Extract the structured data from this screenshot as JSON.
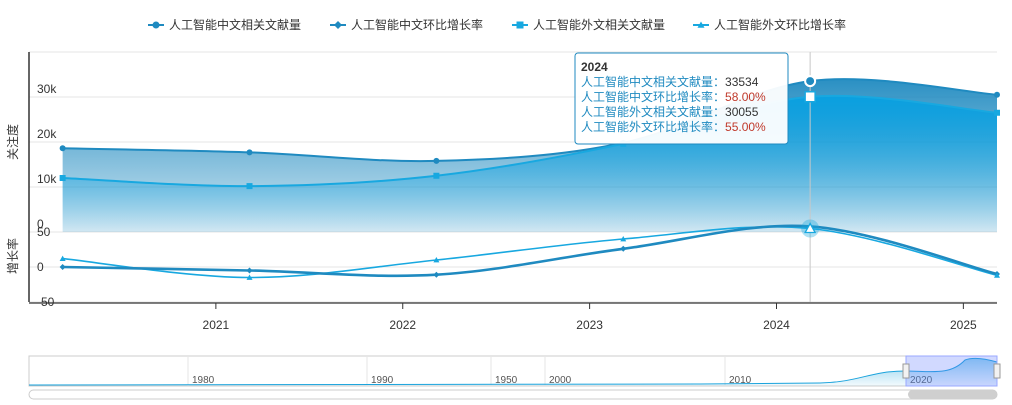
{
  "legend": [
    {
      "label": "人工智能中文相关文献量",
      "color": "#1f8ac0",
      "marker": "circle"
    },
    {
      "label": "人工智能中文环比增长率",
      "color": "#1f8ac0",
      "marker": "diamond"
    },
    {
      "label": "人工智能外文相关文献量",
      "color": "#18a8e0",
      "marker": "square"
    },
    {
      "label": "人工智能外文环比增长率",
      "color": "#18a8e0",
      "marker": "triangle"
    }
  ],
  "tooltip": {
    "title": "2024",
    "rows": [
      {
        "label": "人工智能中文相关文献量：",
        "value": "33534",
        "value_color": "#333333"
      },
      {
        "label": "人工智能中文环比增长率：",
        "value": "58.00%",
        "value_color": "#c0392b"
      },
      {
        "label": "人工智能外文相关文献量：",
        "value": "30055",
        "value_color": "#333333"
      },
      {
        "label": "人工智能外文环比增长率：",
        "value": "55.00%",
        "value_color": "#c0392b"
      }
    ]
  },
  "chart_data": {
    "type": "line",
    "x": [
      2020.18,
      2021.18,
      2022.18,
      2023.18,
      2024.18,
      2025.18
    ],
    "x_ticks": [
      "2021",
      "2022",
      "2023",
      "2024",
      "2025"
    ],
    "x_tick_values": [
      2021,
      2022,
      2023,
      2024,
      2025
    ],
    "xlim": [
      2020.0,
      2025.18
    ],
    "top_pane": {
      "ylabel": "关注度",
      "ylim": [
        0,
        40000
      ],
      "y_ticks": [
        "0",
        "10k",
        "20k",
        "30k"
      ],
      "y_tick_values": [
        0,
        10000,
        20000,
        30000
      ],
      "series": [
        {
          "name": "人工智能中文相关文献量",
          "values": [
            18600,
            17700,
            15800,
            19800,
            33534,
            30500
          ]
        },
        {
          "name": "人工智能外文相关文献量",
          "values": [
            12000,
            10200,
            12500,
            19600,
            30055,
            26500
          ]
        }
      ]
    },
    "bottom_pane": {
      "ylabel": "增长率",
      "ylim": [
        -50,
        50
      ],
      "y_ticks": [
        "-50",
        "0",
        "50"
      ],
      "y_tick_values": [
        -50,
        0,
        50
      ],
      "series": [
        {
          "name": "人工智能中文环比增长率",
          "values": [
            0,
            -5,
            -11,
            26,
            58,
            -10
          ]
        },
        {
          "name": "人工智能外文环比增长率",
          "values": [
            12,
            -15,
            10,
            40,
            55,
            -12
          ]
        }
      ]
    },
    "navigator": {
      "ticks": [
        "1980",
        "1990",
        "1950",
        "2000",
        "2010",
        "2020"
      ]
    },
    "grid": true,
    "legend_position": "top"
  }
}
